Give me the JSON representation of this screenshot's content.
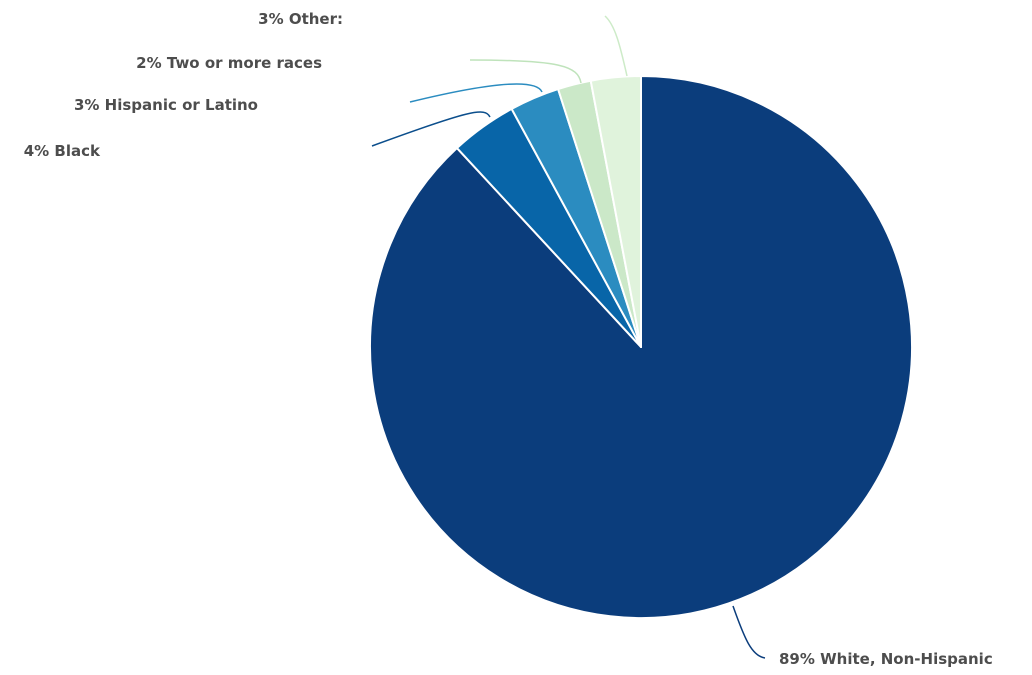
{
  "chart_data": {
    "type": "pie",
    "title": "",
    "start_angle_deg": 0,
    "direction": "clockwise",
    "slices": [
      {
        "label": "White, Non-Hispanic",
        "value": 89,
        "display": "89% White, Non-Hispanic",
        "color": "#0b3d7c",
        "leader_color": "#0b3d7c"
      },
      {
        "label": "Black",
        "value": 4,
        "display": "4% Black",
        "color": "#0865a8",
        "leader_color": "#0b4e8c"
      },
      {
        "label": "Hispanic or Latino",
        "value": 3,
        "display": "3% Hispanic or Latino",
        "color": "#2b8cc0",
        "leader_color": "#2b8cc0"
      },
      {
        "label": "Two or more races",
        "value": 2,
        "display": "2% Two or more races",
        "color": "#cbe8c8",
        "leader_color": "#bfe3bb"
      },
      {
        "label": "Other",
        "value": 3,
        "display": "3% Other:",
        "color": "#e0f3dc",
        "leader_color": "#cdebc8"
      }
    ],
    "legend": "none",
    "label_style": "outside-with-leader-lines"
  }
}
